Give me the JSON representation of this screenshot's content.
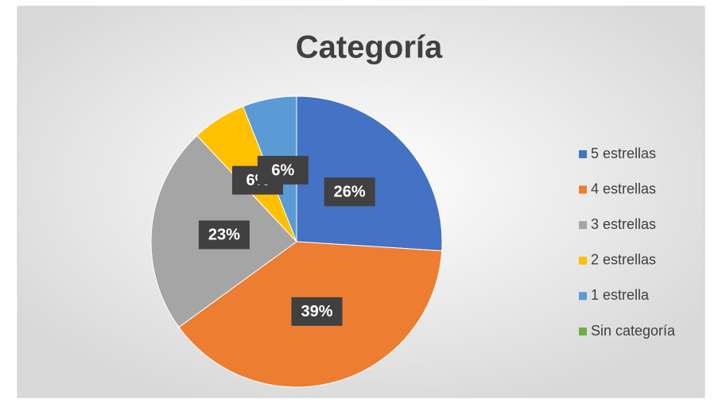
{
  "chart_data": {
    "type": "pie",
    "title": "Categoría",
    "categories": [
      "5 estrellas",
      "4 estrellas",
      "3 estrellas",
      "2 estrellas",
      "1 estrella",
      "Sin categoría"
    ],
    "values": [
      26,
      39,
      23,
      6,
      6,
      0
    ],
    "value_labels": [
      "26%",
      "39%",
      "23%",
      "6%",
      "6%",
      null
    ],
    "colors": [
      "#4472c4",
      "#ed7d31",
      "#a5a5a5",
      "#ffc000",
      "#5b9bd5",
      "#70ad47"
    ],
    "legend": "right"
  }
}
